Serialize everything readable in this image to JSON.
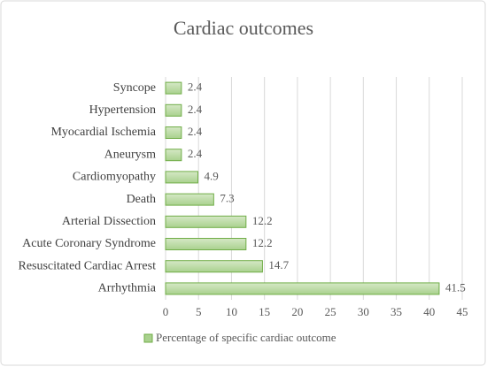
{
  "chart_data": {
    "type": "barh",
    "title": "Cardiac outcomes",
    "categories": [
      "Arrhythmia",
      "Resuscitated Cardiac Arrest",
      "Acute Coronary Syndrome",
      "Arterial Dissection",
      "Death",
      "Cardiomyopathy",
      "Aneurysm",
      "Myocardial Ischemia",
      "Hypertension",
      "Syncope"
    ],
    "series": [
      {
        "name": "Percentage of specific cardiac outcome",
        "color": "#a9d18e",
        "values": [
          41.5,
          14.7,
          12.2,
          12.2,
          7.3,
          4.9,
          2.4,
          2.4,
          2.4,
          2.4
        ]
      }
    ],
    "xlim": [
      0,
      45
    ],
    "xticks": [
      0,
      5,
      10,
      15,
      20,
      25,
      30,
      35,
      40,
      45
    ],
    "grid": true,
    "legend": "bottom"
  }
}
